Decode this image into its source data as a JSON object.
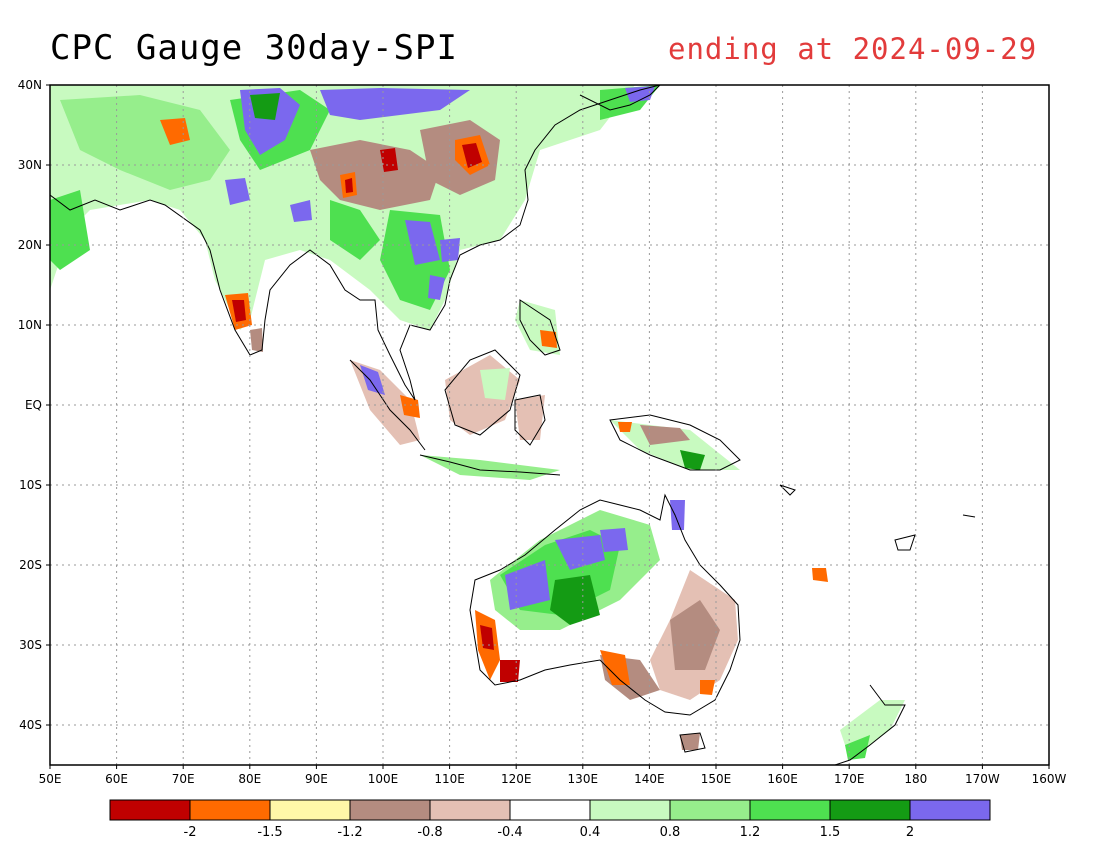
{
  "title": "CPC Gauge 30day-SPI",
  "subtitle": "ending at 2024-09-29",
  "map": {
    "lon_labels": [
      "50E",
      "60E",
      "70E",
      "80E",
      "90E",
      "100E",
      "110E",
      "120E",
      "130E",
      "140E",
      "150E",
      "160E",
      "170E",
      "180",
      "170W",
      "160W"
    ],
    "lat_labels": [
      "40N",
      "30N",
      "20N",
      "10N",
      "EQ",
      "10S",
      "20S",
      "30S",
      "40S"
    ]
  },
  "colorbar": {
    "colors": [
      "#c00000",
      "#ff6a00",
      "#fff8a8",
      "#b48c80",
      "#e4c0b4",
      "#ffffff",
      "#c8fac0",
      "#96ee8c",
      "#4ee050",
      "#149b14",
      "#7b68ee"
    ],
    "labels": [
      "-2",
      "-1.5",
      "-1.2",
      "-0.8",
      "-0.4",
      "0.4",
      "0.8",
      "1.2",
      "1.5",
      "2"
    ]
  }
}
